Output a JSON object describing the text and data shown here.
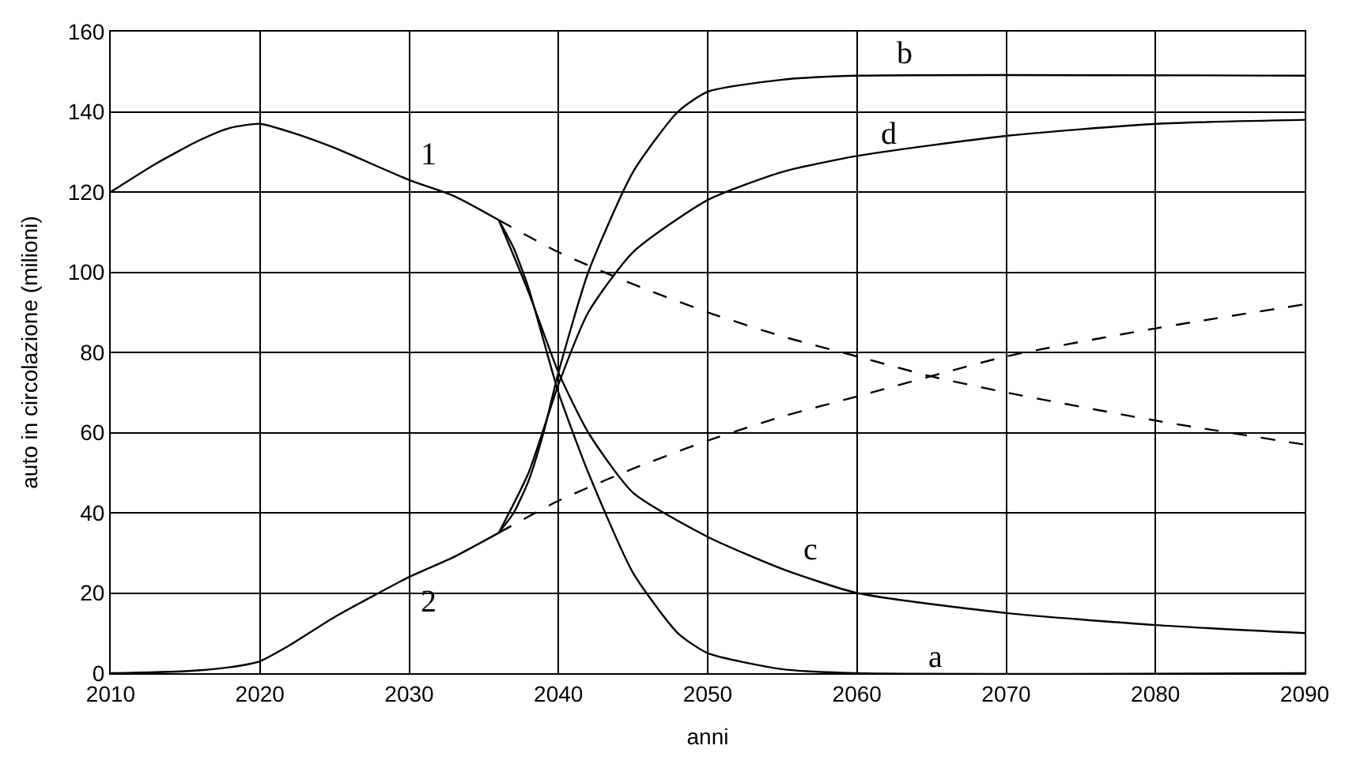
{
  "chart_data": {
    "type": "line",
    "xlabel": "anni",
    "ylabel": "auto in circolazione (milioni)",
    "xlim": [
      2010,
      2090
    ],
    "xticks": [
      2010,
      2020,
      2030,
      2040,
      2050,
      2060,
      2070,
      2080,
      2090
    ],
    "ylim": [
      0,
      160
    ],
    "yticks": [
      0,
      20,
      40,
      60,
      80,
      100,
      120,
      140,
      160
    ],
    "grid": true,
    "legend": false,
    "marker": "none",
    "series": [
      {
        "name": "1",
        "color": "#000000",
        "line_style": "solid",
        "x": [
          2010,
          2013,
          2016,
          2018,
          2020,
          2022,
          2025,
          2030,
          2033,
          2036
        ],
        "values": [
          120,
          127,
          133,
          136,
          137,
          135,
          131,
          123,
          119,
          113
        ]
      },
      {
        "color": "#000000",
        "line_style": "dashed",
        "x": [
          2036,
          2040,
          2045,
          2050,
          2055,
          2060,
          2065,
          2070,
          2080,
          2090
        ],
        "values": [
          113,
          105,
          97,
          90,
          84,
          79,
          74,
          70,
          63,
          57
        ]
      },
      {
        "name": "a",
        "color": "#000000",
        "line_style": "solid",
        "x": [
          2036,
          2037,
          2038,
          2039,
          2040,
          2042,
          2045,
          2048,
          2050,
          2055,
          2060,
          2090
        ],
        "values": [
          113,
          106,
          96,
          83,
          70,
          50,
          25,
          10,
          5,
          1,
          0,
          0
        ]
      },
      {
        "name": "c",
        "color": "#000000",
        "line_style": "solid",
        "x": [
          2036,
          2038,
          2040,
          2042,
          2045,
          2050,
          2055,
          2060,
          2070,
          2080,
          2090
        ],
        "values": [
          113,
          95,
          75,
          60,
          45,
          34,
          26,
          20,
          15,
          12,
          10
        ]
      },
      {
        "name": "2",
        "color": "#000000",
        "line_style": "solid",
        "x": [
          2010,
          2015,
          2018,
          2020,
          2022,
          2025,
          2030,
          2033,
          2036
        ],
        "values": [
          0,
          0.5,
          1.5,
          3,
          7,
          14,
          24,
          29,
          35
        ]
      },
      {
        "color": "#000000",
        "line_style": "dashed",
        "x": [
          2036,
          2040,
          2045,
          2050,
          2055,
          2060,
          2070,
          2080,
          2090
        ],
        "values": [
          35,
          43,
          51,
          58,
          64,
          69,
          79,
          86,
          92
        ]
      },
      {
        "name": "b",
        "color": "#000000",
        "line_style": "solid",
        "x": [
          2036,
          2037,
          2038,
          2039,
          2040,
          2042,
          2045,
          2048,
          2050,
          2055,
          2060,
          2090
        ],
        "values": [
          35,
          40,
          48,
          60,
          75,
          100,
          125,
          140,
          145,
          148,
          149,
          149
        ]
      },
      {
        "name": "d",
        "color": "#000000",
        "line_style": "solid",
        "x": [
          2036,
          2038,
          2040,
          2042,
          2045,
          2050,
          2055,
          2060,
          2070,
          2080,
          2090
        ],
        "values": [
          35,
          50,
          72,
          90,
          105,
          118,
          125,
          129,
          134,
          137,
          138
        ]
      }
    ]
  }
}
